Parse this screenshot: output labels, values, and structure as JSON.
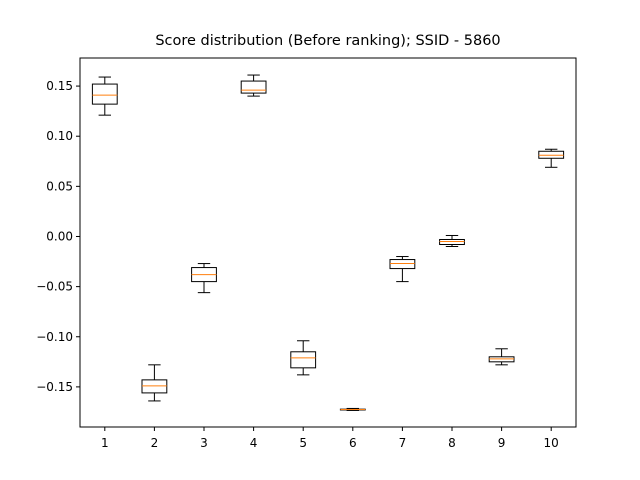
{
  "chart_data": {
    "type": "boxplot",
    "title": "Score distribution (Before ranking); SSID - 5860",
    "xlabel": "",
    "ylabel": "",
    "categories": [
      "1",
      "2",
      "3",
      "4",
      "5",
      "6",
      "7",
      "8",
      "9",
      "10"
    ],
    "ylim": [
      -0.19,
      0.178
    ],
    "yticks": [
      0.15,
      0.1,
      0.05,
      0.0,
      -0.05,
      -0.1,
      -0.15
    ],
    "ytick_labels": [
      "0.15",
      "0.10",
      "0.05",
      "0.00",
      "−0.05",
      "−0.10",
      "−0.15"
    ],
    "grid": false,
    "boxes": [
      {
        "category": "1",
        "whisker_low": 0.121,
        "q1": 0.132,
        "median": 0.141,
        "q3": 0.152,
        "whisker_high": 0.159
      },
      {
        "category": "2",
        "whisker_low": -0.164,
        "q1": -0.156,
        "median": -0.149,
        "q3": -0.143,
        "whisker_high": -0.128
      },
      {
        "category": "3",
        "whisker_low": -0.056,
        "q1": -0.045,
        "median": -0.038,
        "q3": -0.031,
        "whisker_high": -0.027
      },
      {
        "category": "4",
        "whisker_low": 0.14,
        "q1": 0.143,
        "median": 0.146,
        "q3": 0.155,
        "whisker_high": 0.161
      },
      {
        "category": "5",
        "whisker_low": -0.138,
        "q1": -0.131,
        "median": -0.121,
        "q3": -0.115,
        "whisker_high": -0.104
      },
      {
        "category": "6",
        "whisker_low": -0.1735,
        "q1": -0.1728,
        "median": -0.1725,
        "q3": -0.1722,
        "whisker_high": -0.1715
      },
      {
        "category": "7",
        "whisker_low": -0.045,
        "q1": -0.032,
        "median": -0.027,
        "q3": -0.023,
        "whisker_high": -0.02
      },
      {
        "category": "8",
        "whisker_low": -0.01,
        "q1": -0.008,
        "median": -0.005,
        "q3": -0.003,
        "whisker_high": 0.001
      },
      {
        "category": "9",
        "whisker_low": -0.128,
        "q1": -0.125,
        "median": -0.122,
        "q3": -0.12,
        "whisker_high": -0.112
      },
      {
        "category": "10",
        "whisker_low": 0.069,
        "q1": 0.078,
        "median": 0.081,
        "q3": 0.085,
        "whisker_high": 0.087
      }
    ],
    "colors": {
      "box": "#000000",
      "median": "#ff7f0e",
      "axes": "#000000",
      "background": "#ffffff"
    }
  }
}
